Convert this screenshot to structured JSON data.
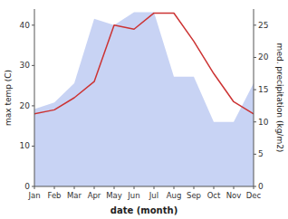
{
  "chart_data": {
    "type": "line",
    "xlabel": "date (month)",
    "ylabel": "max temp (C)",
    "y2label": "med. precipitation (kg/m2)",
    "categories": [
      "Jan",
      "Feb",
      "Mar",
      "Apr",
      "May",
      "Jun",
      "Jul",
      "Aug",
      "Sep",
      "Oct",
      "Nov",
      "Dec"
    ],
    "series": [
      {
        "type": "area",
        "axis": "y2",
        "color": "#aabbee",
        "values": [
          12,
          13,
          16,
          26,
          25,
          27,
          27,
          17,
          17,
          10,
          10,
          16
        ]
      },
      {
        "type": "line",
        "color": "#cc3333",
        "values": [
          18,
          19,
          22,
          26,
          40,
          39,
          43,
          43,
          36,
          28,
          21,
          18
        ]
      }
    ],
    "ylim": [
      0,
      44
    ],
    "yticks": [
      0,
      10,
      20,
      30,
      40
    ],
    "y2lim": [
      0,
      27.5
    ],
    "y2ticks": [
      0,
      5,
      10,
      15,
      20,
      25
    ],
    "grid": false
  }
}
